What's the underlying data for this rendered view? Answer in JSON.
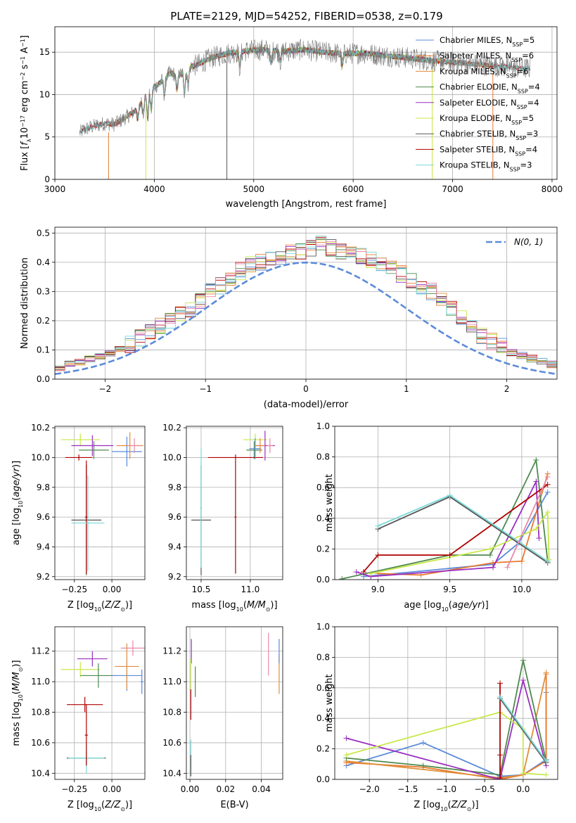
{
  "title": "PLATE=2129, MJD=54252, FIBERID=0538, z=0.179",
  "colors": {
    "Chabrier MILES": "#5b8bd9",
    "Salpeter MILES": "#e87a2e",
    "Kroupa MILES": "#e08e3a",
    "Chabrier ELODIE": "#4e8a4e",
    "Salpeter ELODIE": "#9a2fc0",
    "Kroupa ELODIE": "#c8e84a",
    "Chabrier STELIB": "#555555",
    "Salpeter STELIB": "#b00000",
    "Kroupa STELIB": "#78d8d8",
    "gaussian": "#5b8bd9",
    "extra_pink": "#e88aaa"
  },
  "chart_data": [
    {
      "panel": "spectrum",
      "type": "line",
      "xlabel": "wavelength [Angstrom, rest frame]",
      "ylabel": "Flux [f_λ10^-17 erg cm^-2 s^-1 A^-1]",
      "xlim": [
        3000,
        8050
      ],
      "ylim": [
        0,
        18
      ],
      "xticks": [
        3000,
        4000,
        5000,
        6000,
        7000,
        8000
      ],
      "yticks": [
        0,
        5,
        10,
        15
      ],
      "legend_position": "upper right",
      "envelope": {
        "x": [
          3250,
          3300,
          3400,
          3500,
          3600,
          3700,
          3800,
          3850,
          3950,
          4050,
          4150,
          4250,
          4350,
          4450,
          4550,
          4650,
          4750,
          4850,
          4950,
          5100,
          5300,
          5500,
          5700,
          5900,
          6100,
          6300,
          6500,
          6700,
          6900,
          7100,
          7300,
          7500,
          7700
        ],
        "y": [
          5.5,
          5.9,
          6.3,
          6.6,
          6.5,
          7.2,
          8.0,
          8.8,
          10.5,
          11.3,
          12.5,
          12.3,
          13.2,
          13.6,
          14.2,
          14.6,
          14.9,
          15.0,
          15.2,
          15.3,
          15.1,
          15.3,
          15.0,
          14.8,
          14.9,
          14.6,
          14.4,
          14.1,
          13.9,
          13.7,
          13.5,
          13.3,
          13.1
        ]
      },
      "legend": [
        {
          "name": "Chabrier MILES, N_SSP=5",
          "model": "Chabrier MILES"
        },
        {
          "name": "Salpeter MILES, N_SSP=6",
          "model": "Salpeter MILES"
        },
        {
          "name": "Kroupa MILES, N_SSP=6",
          "model": "Kroupa MILES"
        },
        {
          "name": "Chabrier ELODIE, N_SSP=4",
          "model": "Chabrier ELODIE"
        },
        {
          "name": "Salpeter ELODIE, N_SSP=4",
          "model": "Salpeter ELODIE"
        },
        {
          "name": "Kroupa ELODIE, N_SSP=5",
          "model": "Kroupa ELODIE"
        },
        {
          "name": "Chabrier STELIB, N_SSP=3",
          "model": "Chabrier STELIB"
        },
        {
          "name": "Salpeter STELIB, N_SSP=4",
          "model": "Salpeter STELIB"
        },
        {
          "name": "Kroupa STELIB, N_SSP=3",
          "model": "Kroupa STELIB"
        }
      ]
    },
    {
      "panel": "residuals",
      "type": "step",
      "xlabel": "(data-model)/error",
      "ylabel": "Normed distribution",
      "xlim": [
        -2.5,
        2.5
      ],
      "ylim": [
        0,
        0.52
      ],
      "xticks": [
        -2,
        -1,
        0,
        1,
        2
      ],
      "yticks": [
        0.0,
        0.1,
        0.2,
        0.3,
        0.4,
        0.5
      ],
      "gaussian_label": "N(0, 1)",
      "bin_width": 0.1,
      "hist_base": [
        0.02,
        0.022,
        0.025,
        0.03,
        0.035,
        0.04,
        0.05,
        0.06,
        0.07,
        0.08,
        0.09,
        0.1,
        0.12,
        0.14,
        0.16,
        0.18,
        0.2,
        0.22,
        0.24,
        0.27,
        0.3,
        0.32,
        0.35,
        0.37,
        0.39,
        0.4,
        0.41,
        0.42,
        0.43,
        0.44,
        0.45,
        0.46,
        0.45,
        0.44,
        0.43,
        0.42,
        0.41,
        0.4,
        0.38,
        0.36,
        0.34,
        0.32,
        0.3,
        0.27,
        0.24,
        0.21,
        0.18,
        0.15,
        0.13,
        0.11,
        0.09,
        0.08,
        0.07,
        0.06,
        0.05,
        0.04,
        0.035,
        0.03,
        0.025,
        0.022
      ],
      "hist_start": -3.0
    },
    {
      "panel": "age_vs_Z",
      "type": "errorbar",
      "xlabel": "Z [log10(Z/Z⊙)]",
      "ylabel": "age  [log10(age/yr)]",
      "xlim": [
        -0.38,
        0.22
      ],
      "ylim": [
        9.18,
        10.21
      ],
      "xticks": [
        -0.25,
        0.0
      ],
      "yticks": [
        9.2,
        9.4,
        9.6,
        9.8,
        10.0,
        10.2
      ],
      "points": [
        {
          "model": "Kroupa ELODIE",
          "x": -0.21,
          "xerr": 0.13,
          "y": 10.12,
          "yerr": 0.04
        },
        {
          "model": "Salpeter ELODIE",
          "x": -0.13,
          "xerr": 0.14,
          "y": 10.08,
          "yerr": 0.07
        },
        {
          "model": "Chabrier ELODIE",
          "x": -0.12,
          "xerr": 0.1,
          "y": 10.05,
          "yerr": 0.06
        },
        {
          "model": "Salpeter STELIB",
          "x": -0.22,
          "xerr": 0.09,
          "y": 10.0,
          "yerr": 0.02
        },
        {
          "model": "Chabrier STELIB",
          "x": -0.17,
          "xerr": 0.1,
          "y": 9.58,
          "yerr": 0.37
        },
        {
          "model": "Salpeter STELIB",
          "x": -0.17,
          "xerr": 0.01,
          "y": 9.6,
          "yerr": 0.38
        },
        {
          "model": "Kroupa STELIB",
          "x": -0.16,
          "xerr": 0.11,
          "y": 9.56,
          "yerr": 0.32
        },
        {
          "model": "Chabrier MILES",
          "x": 0.1,
          "xerr": 0.1,
          "y": 10.04,
          "yerr": 0.1
        },
        {
          "model": "Kroupa MILES",
          "x": 0.12,
          "xerr": 0.09,
          "y": 10.08,
          "yerr": 0.09
        },
        {
          "model": "extra_pink",
          "x": 0.15,
          "xerr": 0.04,
          "y": 10.08,
          "yerr": 0.05
        }
      ]
    },
    {
      "panel": "age_vs_mass",
      "type": "errorbar",
      "xlabel": "mass [log10(M/M⊙)]",
      "ylabel": "",
      "xlim": [
        10.35,
        11.33
      ],
      "ylim": [
        9.18,
        10.21
      ],
      "xticks": [
        10.5,
        11.0
      ],
      "yticks": [
        9.2,
        9.4,
        9.6,
        9.8,
        10.0,
        10.2
      ],
      "points": [
        {
          "model": "Kroupa ELODIE",
          "x": 11.05,
          "xerr": 0.12,
          "y": 10.12,
          "yerr": 0.04
        },
        {
          "model": "Salpeter ELODIE",
          "x": 11.15,
          "xerr": 0.1,
          "y": 10.08,
          "yerr": 0.1
        },
        {
          "model": "Chabrier ELODIE",
          "x": 11.04,
          "xerr": 0.08,
          "y": 10.05,
          "yerr": 0.06
        },
        {
          "model": "Salpeter STELIB",
          "x": 10.85,
          "xerr": 0.28,
          "y": 10.0,
          "yerr": 0.02
        },
        {
          "model": "Chabrier STELIB",
          "x": 10.5,
          "xerr": 0.1,
          "y": 9.58,
          "yerr": 0.37
        },
        {
          "model": "Salpeter STELIB",
          "x": 10.85,
          "xerr": 0.01,
          "y": 9.6,
          "yerr": 0.38
        },
        {
          "model": "Kroupa STELIB",
          "x": 10.5,
          "xerr": 0.01,
          "y": 9.66,
          "yerr": 0.4
        },
        {
          "model": "Chabrier MILES",
          "x": 11.05,
          "xerr": 0.06,
          "y": 10.06,
          "yerr": 0.07
        },
        {
          "model": "Kroupa MILES",
          "x": 11.1,
          "xerr": 0.05,
          "y": 10.08,
          "yerr": 0.05
        },
        {
          "model": "extra_pink",
          "x": 11.2,
          "xerr": 0.03,
          "y": 10.08,
          "yerr": 0.05
        }
      ]
    },
    {
      "panel": "weight_vs_age",
      "type": "line",
      "xlabel": "age  [log10(age/yr)]",
      "ylabel": "mass weight",
      "xlim": [
        8.7,
        10.25
      ],
      "ylim": [
        0,
        1.0
      ],
      "xticks": [
        9.0,
        9.5,
        10.0
      ],
      "yticks": [
        0.0,
        0.2,
        0.4,
        0.6,
        0.8,
        1.0
      ],
      "series": [
        {
          "model": "Chabrier MILES",
          "x": [
            8.9,
            9.8,
            9.98,
            10.18
          ],
          "y": [
            0.02,
            0.1,
            0.24,
            0.57
          ]
        },
        {
          "model": "Salpeter MILES",
          "x": [
            9.0,
            9.3,
            9.8,
            10.0,
            10.18
          ],
          "y": [
            0.04,
            0.03,
            0.11,
            0.12,
            0.69
          ]
        },
        {
          "model": "Chabrier ELODIE",
          "x": [
            8.75,
            9.5,
            9.78,
            10.1,
            10.18
          ],
          "y": [
            0.005,
            0.16,
            0.16,
            0.78,
            0.12
          ]
        },
        {
          "model": "Salpeter ELODIE",
          "x": [
            8.85,
            8.95,
            9.8,
            10.1,
            10.12
          ],
          "y": [
            0.05,
            0.02,
            0.08,
            0.64,
            0.27
          ]
        },
        {
          "model": "Kroupa ELODIE",
          "x": [
            8.95,
            9.78,
            10.1,
            10.18,
            10.19
          ],
          "y": [
            0.04,
            0.2,
            0.33,
            0.44,
            0.13
          ]
        },
        {
          "model": "Salpeter STELIB",
          "x": [
            8.9,
            9.0,
            9.5,
            10.18
          ],
          "y": [
            0.05,
            0.16,
            0.16,
            0.62
          ]
        },
        {
          "model": "Chabrier STELIB",
          "x": [
            9.0,
            9.5,
            10.18
          ],
          "y": [
            0.33,
            0.54,
            0.11
          ]
        },
        {
          "model": "Kroupa STELIB",
          "x": [
            9.0,
            9.5,
            10.18
          ],
          "y": [
            0.35,
            0.55,
            0.12
          ]
        },
        {
          "model": "extra_pink",
          "x": [
            9.9,
            10.18
          ],
          "y": [
            0.08,
            0.67
          ]
        }
      ]
    },
    {
      "panel": "mass_vs_Z",
      "type": "errorbar",
      "xlabel": "Z [log10(Z/Z⊙)]",
      "ylabel": "mass [log10(M/M⊙)]",
      "xlim": [
        -0.38,
        0.22
      ],
      "ylim": [
        10.36,
        11.36
      ],
      "xticks": [
        -0.25,
        0.0
      ],
      "yticks": [
        10.4,
        10.6,
        10.8,
        11.0,
        11.2
      ],
      "points": [
        {
          "model": "Kroupa ELODIE",
          "x": -0.21,
          "xerr": 0.13,
          "y": 11.08,
          "yerr": 0.05
        },
        {
          "model": "Salpeter ELODIE",
          "x": -0.13,
          "xerr": 0.1,
          "y": 11.15,
          "yerr": 0.05
        },
        {
          "model": "Chabrier ELODIE",
          "x": -0.09,
          "xerr": 0.12,
          "y": 11.04,
          "yerr": 0.08
        },
        {
          "model": "Salpeter STELIB",
          "x": -0.18,
          "xerr": 0.12,
          "y": 10.85,
          "yerr": 0.05
        },
        {
          "model": "Chabrier STELIB",
          "x": -0.17,
          "xerr": 0.13,
          "y": 10.5,
          "yerr": 0.04
        },
        {
          "model": "Kroupa STELIB",
          "x": -0.17,
          "xerr": 0.12,
          "y": 10.5,
          "yerr": 0.1
        },
        {
          "model": "Salpeter STELIB",
          "x": -0.17,
          "xerr": 0.01,
          "y": 10.65,
          "yerr": 0.2
        },
        {
          "model": "Chabrier MILES",
          "x": 0.1,
          "xerr": 0.1,
          "y": 11.04,
          "yerr": 0.1
        },
        {
          "model": "Kroupa MILES",
          "x": 0.1,
          "xerr": 0.08,
          "y": 11.1,
          "yerr": 0.15
        },
        {
          "model": "extra_pink",
          "x": 0.14,
          "xerr": 0.08,
          "y": 11.22,
          "yerr": 0.05
        },
        {
          "model": "Chabrier MILES",
          "x": 0.2,
          "xerr": 0.01,
          "y": 11.0,
          "yerr": 0.08
        }
      ]
    },
    {
      "panel": "mass_vs_ebv",
      "type": "errorbar",
      "xlabel": "E(B-V)",
      "ylabel": "",
      "xlim": [
        -0.002,
        0.052
      ],
      "ylim": [
        10.36,
        11.36
      ],
      "xticks": [
        0.0,
        0.02,
        0.04
      ],
      "yticks": [
        10.4,
        10.6,
        10.8,
        11.0,
        11.2
      ],
      "points": [
        {
          "model": "Salpeter ELODIE",
          "x": 0.0008,
          "xerr": 0.0,
          "y": 11.2,
          "yerr": 0.08
        },
        {
          "model": "Kroupa ELODIE",
          "x": 0.0005,
          "xerr": 0.0,
          "y": 11.05,
          "yerr": 0.1
        },
        {
          "model": "Chabrier ELODIE",
          "x": 0.003,
          "xerr": 0.0,
          "y": 11.0,
          "yerr": 0.1
        },
        {
          "model": "Salpeter STELIB",
          "x": 0.0005,
          "xerr": 0.0,
          "y": 10.85,
          "yerr": 0.1
        },
        {
          "model": "Kroupa STELIB",
          "x": 0.0005,
          "xerr": 0.0,
          "y": 10.5,
          "yerr": 0.12
        },
        {
          "model": "Chabrier STELIB",
          "x": 0.0005,
          "xerr": 0.0,
          "y": 10.45,
          "yerr": 0.07
        },
        {
          "model": "extra_pink",
          "x": 0.044,
          "xerr": 0.0,
          "y": 11.18,
          "yerr": 0.14
        },
        {
          "model": "Kroupa MILES",
          "x": 0.05,
          "xerr": 0.0,
          "y": 11.05,
          "yerr": 0.13
        },
        {
          "model": "Chabrier MILES",
          "x": 0.05,
          "xerr": 0.0,
          "y": 11.2,
          "yerr": 0.08
        }
      ]
    },
    {
      "panel": "weight_vs_Z",
      "type": "line",
      "xlabel": "Z [log10(Z/Z⊙)]",
      "ylabel": "mass weight",
      "xlim": [
        -2.45,
        0.45
      ],
      "ylim": [
        0,
        1.0
      ],
      "xticks": [
        -2.0,
        -1.5,
        -1.0,
        -0.5,
        0.0
      ],
      "yticks": [
        0.0,
        0.2,
        0.4,
        0.6,
        0.8,
        1.0
      ],
      "series": [
        {
          "model": "Chabrier MILES",
          "x": [
            -2.3,
            -1.3,
            -0.3,
            0.0,
            0.3,
            0.3
          ],
          "y": [
            0.09,
            0.24,
            0.02,
            0.03,
            0.13,
            0.57
          ]
        },
        {
          "model": "Salpeter MILES",
          "x": [
            -2.3,
            -1.3,
            -0.3,
            0.0,
            0.3,
            0.3
          ],
          "y": [
            0.11,
            0.08,
            0.0,
            0.03,
            0.12,
            0.69
          ]
        },
        {
          "model": "Kroupa MILES",
          "x": [
            -2.3,
            -0.3,
            0.0,
            0.3
          ],
          "y": [
            0.12,
            0.01,
            0.03,
            0.7
          ]
        },
        {
          "model": "Chabrier ELODIE",
          "x": [
            -2.3,
            -1.3,
            -0.3,
            0.0,
            0.3
          ],
          "y": [
            0.14,
            0.09,
            0.03,
            0.78,
            0.12
          ]
        },
        {
          "model": "Salpeter ELODIE",
          "x": [
            -2.3,
            -0.3,
            0.0,
            0.3
          ],
          "y": [
            0.27,
            0.0,
            0.65,
            0.09
          ]
        },
        {
          "model": "Kroupa ELODIE",
          "x": [
            -2.3,
            -0.3,
            0.0,
            0.0,
            0.3
          ],
          "y": [
            0.16,
            0.44,
            0.33,
            0.04,
            0.03
          ]
        },
        {
          "model": "Salpeter STELIB",
          "x": [
            -0.3,
            -0.3,
            -0.3
          ],
          "y": [
            0.16,
            0.63,
            0.01
          ]
        },
        {
          "model": "Chabrier STELIB",
          "x": [
            -0.3,
            0.3
          ],
          "y": [
            0.53,
            0.11
          ]
        },
        {
          "model": "Kroupa STELIB",
          "x": [
            -0.3,
            0.3
          ],
          "y": [
            0.54,
            0.12
          ]
        }
      ]
    }
  ]
}
